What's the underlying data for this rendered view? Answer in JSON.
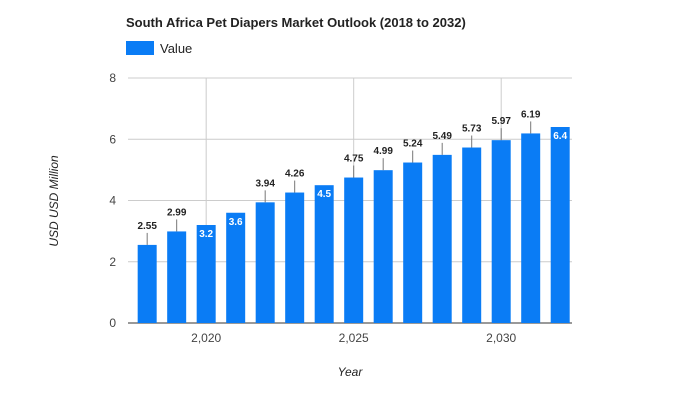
{
  "chart_data": {
    "type": "bar",
    "title": "South Africa Pet Diapers Market Outlook (2018 to 2032)",
    "xlabel": "Year",
    "ylabel": "USD USD Million",
    "x": [
      2018,
      2019,
      2020,
      2021,
      2022,
      2023,
      2024,
      2025,
      2026,
      2027,
      2028,
      2029,
      2030,
      2031,
      2032
    ],
    "x_ticks": [
      "2,020",
      "2,025",
      "2,030"
    ],
    "x_tick_values": [
      2020,
      2025,
      2030
    ],
    "series": [
      {
        "name": "Value",
        "values": [
          2.55,
          2.99,
          3.2,
          3.6,
          3.94,
          4.26,
          4.5,
          4.75,
          4.99,
          5.24,
          5.49,
          5.73,
          5.97,
          6.19,
          6.4
        ],
        "labels": [
          "2.55",
          "2.99",
          "3.2",
          "3.6",
          "3.94",
          "4.26",
          "4.5",
          "4.75",
          "4.99",
          "5.24",
          "5.49",
          "5.73",
          "5.97",
          "6.19",
          "6.4"
        ],
        "inside_label": [
          false,
          false,
          true,
          true,
          false,
          false,
          true,
          false,
          false,
          false,
          false,
          false,
          false,
          false,
          true
        ],
        "color": "#0a7cf5"
      }
    ],
    "ylim": [
      0,
      8
    ],
    "y_ticks": [
      "0",
      "2",
      "4",
      "6",
      "8"
    ],
    "y_tick_values": [
      0,
      2,
      4,
      6,
      8
    ],
    "grid": true,
    "legend": "top-left"
  }
}
